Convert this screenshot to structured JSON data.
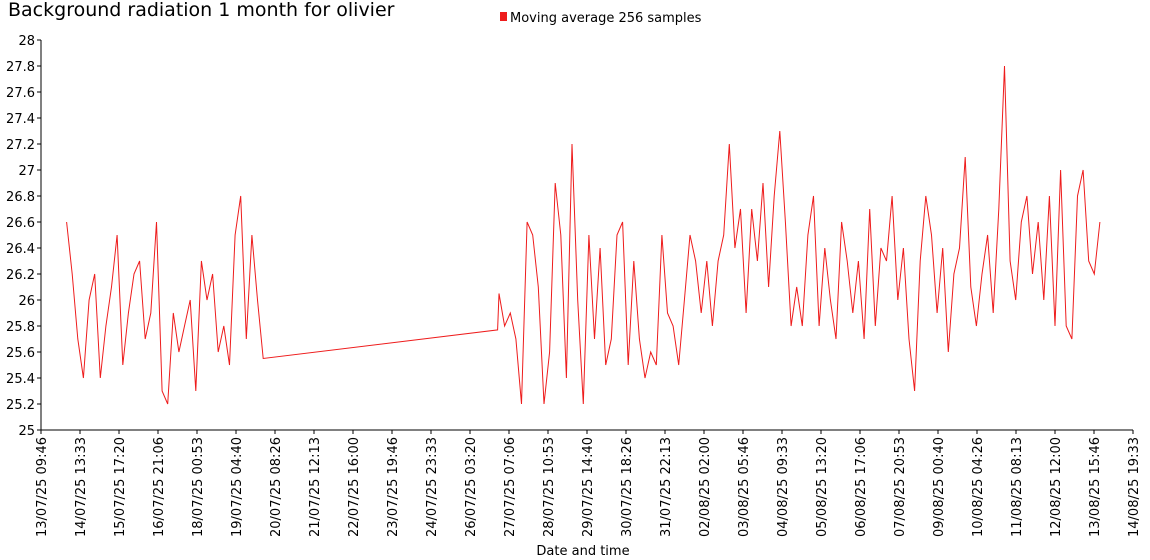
{
  "chart_data": {
    "type": "line",
    "title": "Background radiation 1 month for olivier",
    "x_label": "Date and time",
    "x": [
      "14/07/25 04:00",
      "14/07/25 08:00",
      "14/07/25 12:00",
      "14/07/25 16:00",
      "14/07/25 20:00",
      "15/07/25 00:00",
      "15/07/25 04:00",
      "15/07/25 08:00",
      "15/07/25 12:00",
      "15/07/25 16:00",
      "15/07/25 20:00",
      "16/07/25 00:00",
      "16/07/25 04:00",
      "16/07/25 08:00",
      "16/07/25 12:00",
      "16/07/25 16:00",
      "16/07/25 20:00",
      "17/07/25 00:00",
      "17/07/25 04:00",
      "17/07/25 08:00",
      "17/07/25 12:00",
      "17/07/25 16:00",
      "17/07/25 20:00",
      "18/07/25 00:00",
      "18/07/25 04:00",
      "18/07/25 08:00",
      "18/07/25 12:00",
      "18/07/25 16:00",
      "18/07/25 20:00",
      "19/07/25 00:00",
      "19/07/25 04:00",
      "19/07/25 08:00",
      "19/07/25 12:00",
      "19/07/25 16:00",
      "19/07/25 20:00",
      "20/07/25 00:00",
      "26/07/25 23:00",
      "27/07/25 00:00",
      "27/07/25 04:00",
      "27/07/25 08:00",
      "27/07/25 12:00",
      "27/07/25 16:00",
      "27/07/25 20:00",
      "28/07/25 00:00",
      "28/07/25 04:00",
      "28/07/25 08:00",
      "28/07/25 12:00",
      "28/07/25 16:00",
      "28/07/25 20:00",
      "29/07/25 00:00",
      "29/07/25 04:00",
      "29/07/25 08:00",
      "29/07/25 12:00",
      "29/07/25 16:00",
      "29/07/25 20:00",
      "30/07/25 00:00",
      "30/07/25 04:00",
      "30/07/25 08:00",
      "30/07/25 12:00",
      "30/07/25 16:00",
      "30/07/25 20:00",
      "31/07/25 00:00",
      "31/07/25 04:00",
      "31/07/25 08:00",
      "31/07/25 12:00",
      "31/07/25 16:00",
      "31/07/25 20:00",
      "01/08/25 00:00",
      "01/08/25 04:00",
      "01/08/25 08:00",
      "01/08/25 12:00",
      "01/08/25 16:00",
      "01/08/25 20:00",
      "02/08/25 00:00",
      "02/08/25 04:00",
      "02/08/25 08:00",
      "02/08/25 12:00",
      "02/08/25 16:00",
      "02/08/25 20:00",
      "03/08/25 00:00",
      "03/08/25 04:00",
      "03/08/25 08:00",
      "03/08/25 12:00",
      "03/08/25 16:00",
      "03/08/25 20:00",
      "04/08/25 00:00",
      "04/08/25 04:00",
      "04/08/25 08:00",
      "04/08/25 12:00",
      "04/08/25 16:00",
      "04/08/25 20:00",
      "05/08/25 00:00",
      "05/08/25 04:00",
      "05/08/25 08:00",
      "05/08/25 12:00",
      "05/08/25 16:00",
      "05/08/25 20:00",
      "06/08/25 00:00",
      "06/08/25 04:00",
      "06/08/25 08:00",
      "06/08/25 12:00",
      "06/08/25 16:00",
      "06/08/25 20:00",
      "07/08/25 00:00",
      "07/08/25 04:00",
      "07/08/25 08:00",
      "07/08/25 12:00",
      "07/08/25 16:00",
      "07/08/25 20:00",
      "08/08/25 00:00",
      "08/08/25 04:00",
      "08/08/25 08:00",
      "08/08/25 12:00",
      "08/08/25 16:00",
      "08/08/25 20:00",
      "09/08/25 00:00",
      "09/08/25 04:00",
      "09/08/25 08:00",
      "09/08/25 12:00",
      "09/08/25 16:00",
      "09/08/25 20:00",
      "10/08/25 00:00",
      "10/08/25 04:00",
      "10/08/25 08:00",
      "10/08/25 12:00",
      "10/08/25 16:00",
      "10/08/25 20:00",
      "11/08/25 00:00",
      "11/08/25 04:00",
      "11/08/25 08:00",
      "11/08/25 12:00",
      "11/08/25 16:00",
      "11/08/25 20:00",
      "12/08/25 00:00",
      "12/08/25 04:00",
      "12/08/25 08:00",
      "12/08/25 12:00",
      "12/08/25 16:00",
      "12/08/25 20:00",
      "13/08/25 00:00",
      "13/08/25 04:00",
      "13/08/25 08:00",
      "13/08/25 12:00",
      "13/08/25 16:00",
      "13/08/25 20:00"
    ],
    "series": [
      {
        "name": "Moving average 256 samples",
        "color": "#ee1c1c",
        "values": [
          26.6,
          26.2,
          25.7,
          25.4,
          26.0,
          26.2,
          25.4,
          25.8,
          26.1,
          26.5,
          25.5,
          25.9,
          26.2,
          26.3,
          25.7,
          25.9,
          26.6,
          25.3,
          25.2,
          25.9,
          25.6,
          25.8,
          26.0,
          25.3,
          26.3,
          26.0,
          26.2,
          25.6,
          25.8,
          25.5,
          26.5,
          26.8,
          25.7,
          26.5,
          26.0,
          25.55,
          25.77,
          26.05,
          25.8,
          25.9,
          25.7,
          25.2,
          26.6,
          26.5,
          26.1,
          25.2,
          25.6,
          26.9,
          26.5,
          25.4,
          27.2,
          26.0,
          25.2,
          26.5,
          25.7,
          26.4,
          25.5,
          25.7,
          26.5,
          26.6,
          25.5,
          26.3,
          25.7,
          25.4,
          25.6,
          25.5,
          26.5,
          25.9,
          25.8,
          25.5,
          26.0,
          26.5,
          26.3,
          25.9,
          26.3,
          25.8,
          26.3,
          26.5,
          27.2,
          26.4,
          26.7,
          25.9,
          26.7,
          26.3,
          26.9,
          26.1,
          26.8,
          27.3,
          26.6,
          25.8,
          26.1,
          25.8,
          26.5,
          26.8,
          25.8,
          26.4,
          26.0,
          25.7,
          26.6,
          26.3,
          25.9,
          26.3,
          25.7,
          26.7,
          25.8,
          26.4,
          26.3,
          26.8,
          26.0,
          26.4,
          25.7,
          25.3,
          26.3,
          26.8,
          26.5,
          25.9,
          26.4,
          25.6,
          26.2,
          26.4,
          27.1,
          26.1,
          25.8,
          26.2,
          26.5,
          25.9,
          26.7,
          27.8,
          26.3,
          26.0,
          26.6,
          26.8,
          26.2,
          26.6,
          26.0,
          26.8,
          25.8,
          27.0,
          25.8,
          25.7,
          26.8,
          27.0,
          26.3,
          26.2,
          26.6
        ]
      }
    ],
    "xlim": [
      "13/07/25 09:46",
      "14/08/25 19:33"
    ],
    "xticks": [
      "13/07/25 09:46",
      "14/07/25 13:33",
      "15/07/25 17:20",
      "16/07/25 21:06",
      "18/07/25 00:53",
      "19/07/25 04:40",
      "20/07/25 08:26",
      "21/07/25 12:13",
      "22/07/25 16:00",
      "23/07/25 19:46",
      "24/07/25 23:33",
      "26/07/25 03:20",
      "27/07/25 07:06",
      "28/07/25 10:53",
      "29/07/25 14:40",
      "30/07/25 18:26",
      "31/07/25 22:13",
      "02/08/25 02:00",
      "03/08/25 05:46",
      "04/08/25 09:33",
      "05/08/25 13:20",
      "06/08/25 17:06",
      "07/08/25 20:53",
      "09/08/25 00:40",
      "10/08/25 04:26",
      "11/08/25 08:13",
      "12/08/25 12:00",
      "13/08/25 15:46",
      "14/08/25 19:33"
    ],
    "ylim": [
      25,
      28
    ],
    "yticks": [
      25,
      25.2,
      25.4,
      25.6,
      25.8,
      26,
      26.2,
      26.4,
      26.6,
      26.8,
      27,
      27.2,
      27.4,
      27.6,
      27.8,
      28
    ],
    "grid": false,
    "legend": "top"
  }
}
